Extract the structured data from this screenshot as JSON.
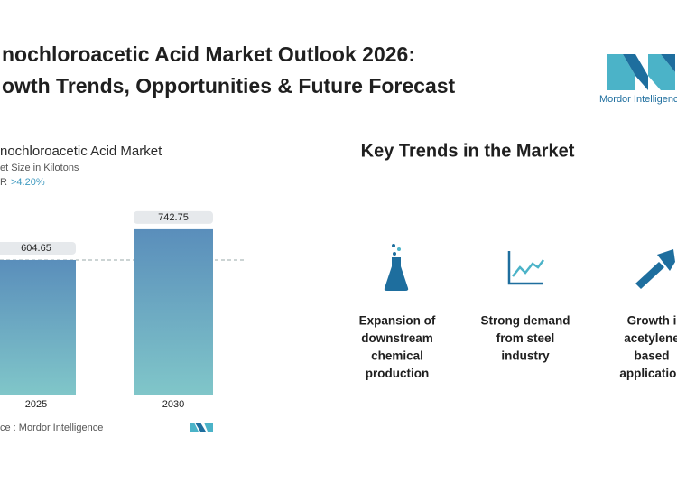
{
  "header": {
    "title_line1": "nochloroacetic Acid Market Outlook 2026:",
    "title_line2": "owth Trends, Opportunities & Future Forecast",
    "logo_text": "Mordor Intelligenc"
  },
  "chart_data": {
    "type": "bar",
    "title": "nochloroacetic Acid Market",
    "subtitle": "et Size in Kilotons",
    "cagr_label": "R",
    "cagr_value": ">4.20%",
    "categories": [
      "2025",
      "2030"
    ],
    "values": [
      604.65,
      742.75
    ],
    "source": "ce :  Mordor Intelligence"
  },
  "trends": {
    "title": "Key Trends in the Market",
    "items": [
      {
        "lines": [
          "Expansion of",
          "downstream",
          "chemical",
          "production"
        ]
      },
      {
        "lines": [
          "Strong demand",
          "from steel",
          "industry"
        ]
      },
      {
        "lines": [
          "Growth i",
          "acetylene",
          "based",
          "application"
        ]
      }
    ]
  }
}
